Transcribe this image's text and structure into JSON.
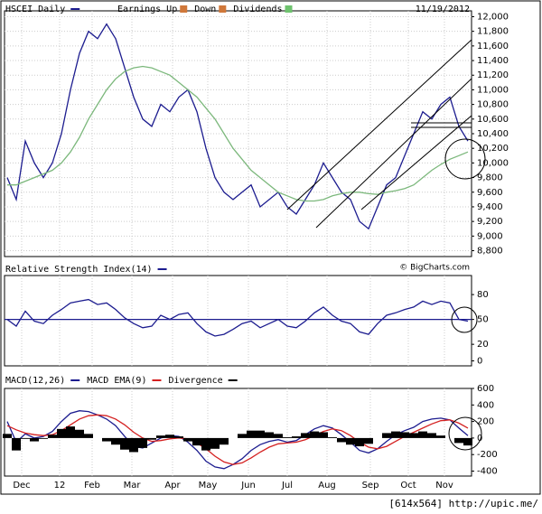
{
  "footer": "[614x564] http://upic.me/",
  "xaxis": {
    "xlim": [
      -0.3,
      51.4
    ],
    "xticks": [
      {
        "value": 1.6,
        "label": "Dec"
      },
      {
        "value": 5.8,
        "label": "12"
      },
      {
        "value": 9.4,
        "label": "Feb"
      },
      {
        "value": 13.8,
        "label": "Mar"
      },
      {
        "value": 18.3,
        "label": "Apr"
      },
      {
        "value": 22.2,
        "label": "May"
      },
      {
        "value": 26.7,
        "label": "Jun"
      },
      {
        "value": 31,
        "label": "Jul"
      },
      {
        "value": 35.4,
        "label": "Aug"
      },
      {
        "value": 40.2,
        "label": "Sep"
      },
      {
        "value": 44.4,
        "label": "Oct"
      },
      {
        "value": 48.4,
        "label": "Nov"
      }
    ]
  },
  "chart_data": [
    {
      "type": "line",
      "title": "HSCEI Daily",
      "date": "11/19/2012",
      "annotations": [
        "Earnings Up",
        "Down",
        "Dividends"
      ],
      "source": "© BigCharts.com",
      "ylim": [
        8720,
        12080
      ],
      "grid": true,
      "yticks": [
        {
          "value": 8800,
          "label": "8,800"
        },
        {
          "value": 9000,
          "label": "9,000"
        },
        {
          "value": 9200,
          "label": "9,200"
        },
        {
          "value": 9400,
          "label": "9,400"
        },
        {
          "value": 9600,
          "label": "9,600"
        },
        {
          "value": 9800,
          "label": "9,800"
        },
        {
          "value": 10000,
          "label": "10,000"
        },
        {
          "value": 10200,
          "label": "10,200"
        },
        {
          "value": 10400,
          "label": "10,400"
        },
        {
          "value": 10600,
          "label": "10,600"
        },
        {
          "value": 10800,
          "label": "10,800"
        },
        {
          "value": 11000,
          "label": "11,000"
        },
        {
          "value": 11200,
          "label": "11,200"
        },
        {
          "value": 11400,
          "label": "11,400"
        },
        {
          "value": 11600,
          "label": "11,600"
        },
        {
          "value": 11800,
          "label": "11,800"
        },
        {
          "value": 12000,
          "label": "12,000"
        }
      ],
      "series": [
        {
          "name": "HSCEI Daily",
          "color": "#1c1c8f",
          "values": [
            9800,
            9500,
            10300,
            10000,
            9800,
            10000,
            10400,
            11000,
            11500,
            11800,
            11700,
            11900,
            11700,
            11300,
            10900,
            10600,
            10500,
            10800,
            10700,
            10900,
            11000,
            10700,
            10200,
            9800,
            9600,
            9500,
            9600,
            9700,
            9400,
            9500,
            9600,
            9400,
            9300,
            9500,
            9700,
            10000,
            9800,
            9600,
            9500,
            9200,
            9100,
            9400,
            9700,
            9800,
            10100,
            10400,
            10700,
            10600,
            10800,
            10900,
            10500,
            10300
          ]
        },
        {
          "color": "#7cb87c",
          "values": [
            9700,
            9700,
            9750,
            9800,
            9850,
            9900,
            10000,
            10150,
            10350,
            10600,
            10800,
            11000,
            11150,
            11250,
            11300,
            11320,
            11300,
            11250,
            11200,
            11100,
            11000,
            10900,
            10750,
            10600,
            10400,
            10200,
            10050,
            9900,
            9800,
            9700,
            9600,
            9550,
            9500,
            9480,
            9480,
            9500,
            9550,
            9580,
            9600,
            9600,
            9580,
            9570,
            9600,
            9620,
            9650,
            9700,
            9800,
            9900,
            9980,
            10050,
            10100,
            10150
          ]
        }
      ]
    },
    {
      "type": "line",
      "ylim": [
        -6,
        103
      ],
      "yticks": [
        0,
        20,
        50,
        80
      ],
      "grid": false,
      "reference_line": 50,
      "series": [
        {
          "name": "Relative Strength Index(14)",
          "color": "#1c1c8f",
          "values": [
            50,
            42,
            60,
            48,
            45,
            55,
            62,
            70,
            72,
            74,
            68,
            70,
            62,
            52,
            45,
            40,
            42,
            55,
            50,
            56,
            58,
            45,
            35,
            30,
            32,
            38,
            45,
            48,
            40,
            45,
            50,
            42,
            40,
            48,
            58,
            65,
            55,
            48,
            45,
            35,
            32,
            45,
            55,
            58,
            62,
            65,
            72,
            68,
            72,
            70,
            50,
            48
          ]
        }
      ]
    },
    {
      "type": "line",
      "ylim": [
        -460,
        600
      ],
      "yticks": [
        -400,
        -200,
        0,
        200,
        400,
        600
      ],
      "grid": false,
      "series": [
        {
          "name": "MACD(12,26)",
          "color": "#1c1c8f",
          "values": [
            200,
            -50,
            50,
            0,
            20,
            80,
            200,
            300,
            330,
            320,
            280,
            230,
            150,
            20,
            -100,
            -120,
            -60,
            0,
            30,
            20,
            -50,
            -150,
            -280,
            -350,
            -370,
            -320,
            -250,
            -150,
            -80,
            -40,
            -20,
            -50,
            -30,
            40,
            110,
            150,
            120,
            40,
            -50,
            -150,
            -180,
            -130,
            -40,
            40,
            90,
            130,
            200,
            230,
            240,
            220,
            120,
            30
          ]
        },
        {
          "name": "MACD EMA(9)",
          "color": "#d42020",
          "values": [
            150,
            100,
            60,
            40,
            30,
            40,
            90,
            160,
            230,
            270,
            280,
            270,
            230,
            160,
            70,
            0,
            -40,
            -30,
            -10,
            0,
            -10,
            -60,
            -130,
            -220,
            -290,
            -320,
            -300,
            -240,
            -170,
            -110,
            -70,
            -60,
            -50,
            -20,
            30,
            80,
            110,
            90,
            30,
            -50,
            -110,
            -130,
            -100,
            -40,
            20,
            70,
            120,
            170,
            210,
            220,
            180,
            120
          ]
        },
        {
          "name": "Divergence",
          "type": "bar",
          "color": "#000000",
          "values": [
            50,
            -150,
            -10,
            -40,
            -10,
            40,
            110,
            140,
            100,
            50,
            0,
            -40,
            -80,
            -140,
            -170,
            -120,
            -20,
            30,
            40,
            20,
            -40,
            -90,
            -150,
            -130,
            -80,
            0,
            50,
            90,
            90,
            70,
            50,
            10,
            20,
            60,
            80,
            70,
            10,
            -50,
            -80,
            -100,
            -70,
            0,
            60,
            80,
            70,
            60,
            80,
            60,
            30,
            0,
            -60,
            -90
          ]
        }
      ]
    }
  ]
}
